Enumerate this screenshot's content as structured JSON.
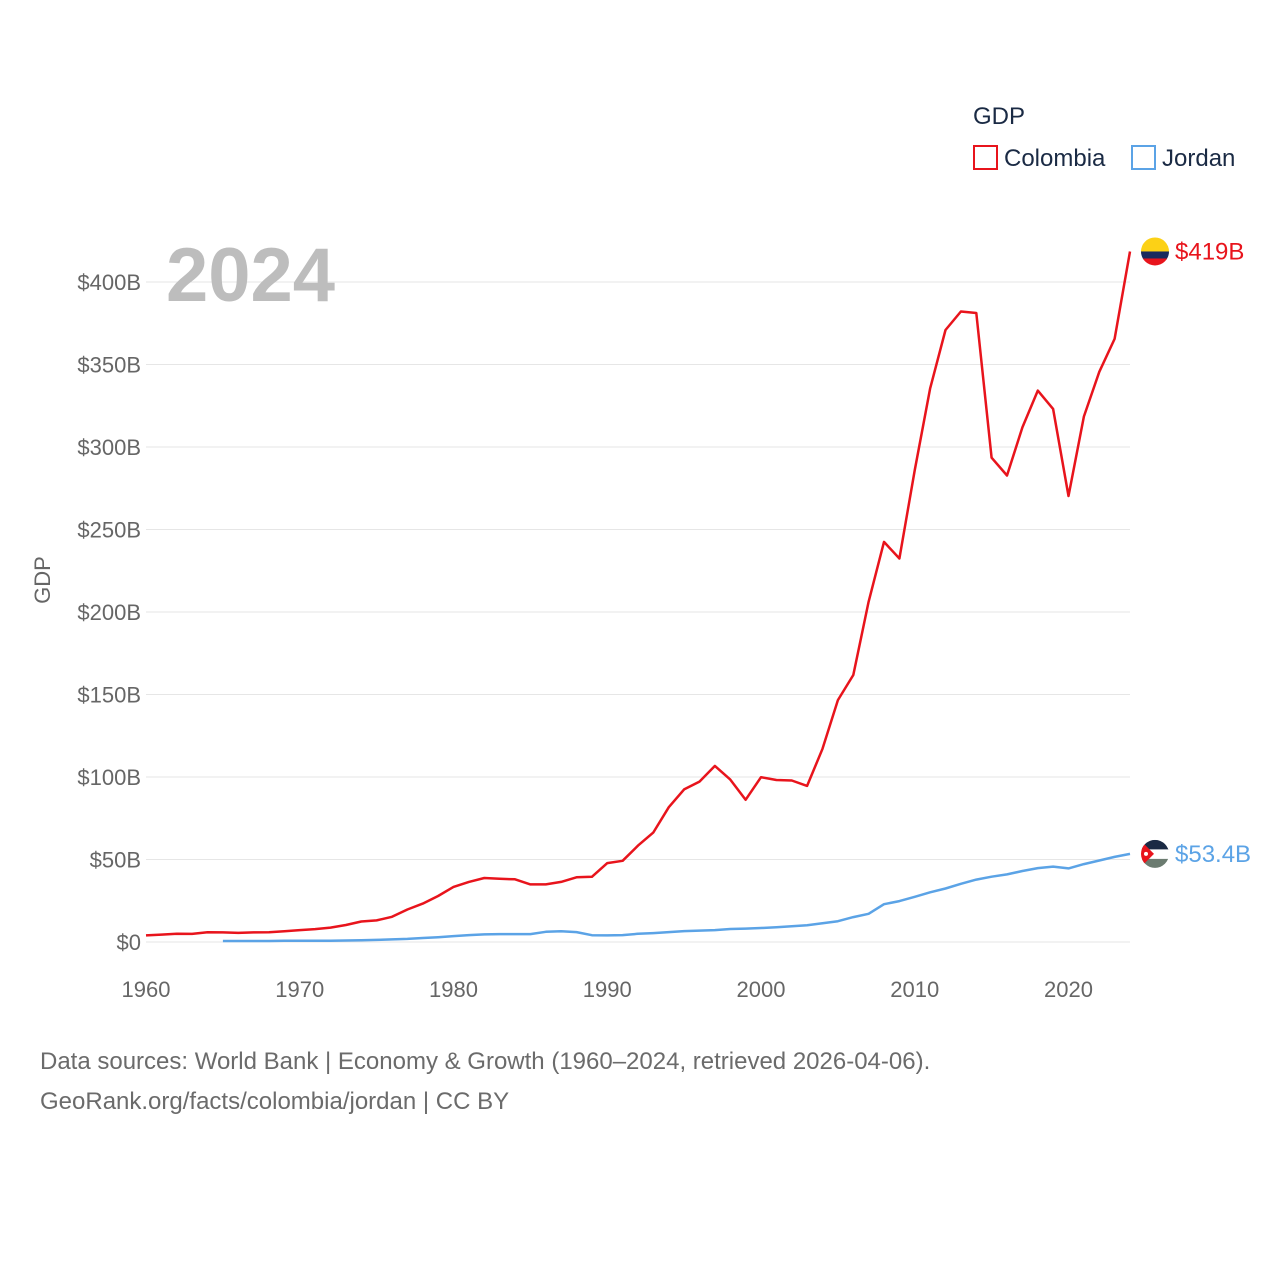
{
  "chart_data": {
    "type": "line",
    "title": "",
    "year_label": "2024",
    "xlabel": "",
    "ylabel": "GDP",
    "xlim": [
      1960,
      2024
    ],
    "ylim": [
      0,
      420
    ],
    "y_unit": "billion USD",
    "x_ticks": [
      1960,
      1970,
      1980,
      1990,
      2000,
      2010,
      2020
    ],
    "x_tick_labels": [
      "1960",
      "1970",
      "1980",
      "1990",
      "2000",
      "2010",
      "2020"
    ],
    "y_ticks": [
      0,
      50,
      100,
      150,
      200,
      250,
      300,
      350,
      400
    ],
    "y_tick_labels": [
      "$0",
      "$50B",
      "$100B",
      "$150B",
      "$200B",
      "$250B",
      "$300B",
      "$350B",
      "$400B"
    ],
    "grid": true,
    "legend": {
      "title": "GDP",
      "position": "top-right"
    },
    "series": [
      {
        "name": "Colombia",
        "color": "#e8141c",
        "end_label": "$419B",
        "flag": "colombia-flag",
        "x": [
          1960,
          1961,
          1962,
          1963,
          1964,
          1965,
          1966,
          1967,
          1968,
          1969,
          1970,
          1971,
          1972,
          1973,
          1974,
          1975,
          1976,
          1977,
          1978,
          1979,
          1980,
          1981,
          1982,
          1983,
          1984,
          1985,
          1986,
          1987,
          1988,
          1989,
          1990,
          1991,
          1992,
          1993,
          1994,
          1995,
          1996,
          1997,
          1998,
          1999,
          2000,
          2001,
          2002,
          2003,
          2004,
          2005,
          2006,
          2007,
          2008,
          2009,
          2010,
          2011,
          2012,
          2013,
          2014,
          2015,
          2016,
          2017,
          2018,
          2019,
          2020,
          2021,
          2022,
          2023,
          2024
        ],
        "values": [
          4.0,
          4.5,
          5.0,
          4.9,
          5.9,
          5.8,
          5.5,
          5.8,
          5.9,
          6.5,
          7.2,
          7.8,
          8.7,
          10.3,
          12.4,
          13.1,
          15.3,
          19.7,
          23.3,
          27.9,
          33.4,
          36.4,
          38.8,
          38.3,
          38.0,
          34.9,
          34.9,
          36.4,
          39.2,
          39.5,
          47.8,
          49.2,
          58.4,
          66.4,
          81.7,
          92.5,
          97.2,
          106.7,
          98.4,
          86.2,
          99.9,
          98.2,
          97.9,
          94.6,
          117.1,
          146.6,
          161.8,
          206.2,
          242.5,
          232.4,
          286.1,
          335.4,
          370.9,
          382.1,
          381.2,
          293.5,
          282.7,
          311.9,
          334.2,
          323.1,
          270.3,
          318.5,
          345.6,
          365.5,
          418.5
        ]
      },
      {
        "name": "Jordan",
        "color": "#5ba3e6",
        "end_label": "$53.4B",
        "flag": "jordan-flag",
        "x": [
          1965,
          1966,
          1967,
          1968,
          1969,
          1970,
          1971,
          1972,
          1973,
          1974,
          1975,
          1976,
          1977,
          1978,
          1979,
          1980,
          1981,
          1982,
          1983,
          1984,
          1985,
          1986,
          1987,
          1988,
          1989,
          1990,
          1991,
          1992,
          1993,
          1994,
          1995,
          1996,
          1997,
          1998,
          1999,
          2000,
          2001,
          2002,
          2003,
          2004,
          2005,
          2006,
          2007,
          2008,
          2009,
          2010,
          2011,
          2012,
          2013,
          2014,
          2015,
          2016,
          2017,
          2018,
          2019,
          2020,
          2021,
          2022,
          2023,
          2024
        ],
        "values": [
          0.6,
          0.6,
          0.6,
          0.6,
          0.7,
          0.7,
          0.7,
          0.8,
          0.9,
          1.1,
          1.3,
          1.6,
          1.9,
          2.4,
          2.9,
          3.6,
          4.2,
          4.6,
          4.8,
          4.8,
          4.8,
          6.2,
          6.5,
          6.0,
          4.1,
          4.0,
          4.2,
          5.0,
          5.4,
          6.0,
          6.6,
          6.9,
          7.2,
          7.9,
          8.1,
          8.5,
          8.9,
          9.5,
          10.2,
          11.4,
          12.6,
          15.1,
          17.1,
          22.9,
          24.8,
          27.4,
          30.1,
          32.4,
          35.3,
          37.8,
          39.6,
          41.0,
          43.0,
          44.8,
          45.7,
          44.6,
          47.2,
          49.4,
          51.6,
          53.4
        ]
      }
    ]
  },
  "footer": {
    "line1": "Data sources: World Bank | Economy & Growth (1960–2024, retrieved 2026-04-06).",
    "line2": "GeoRank.org/facts/colombia/jordan | CC BY"
  }
}
